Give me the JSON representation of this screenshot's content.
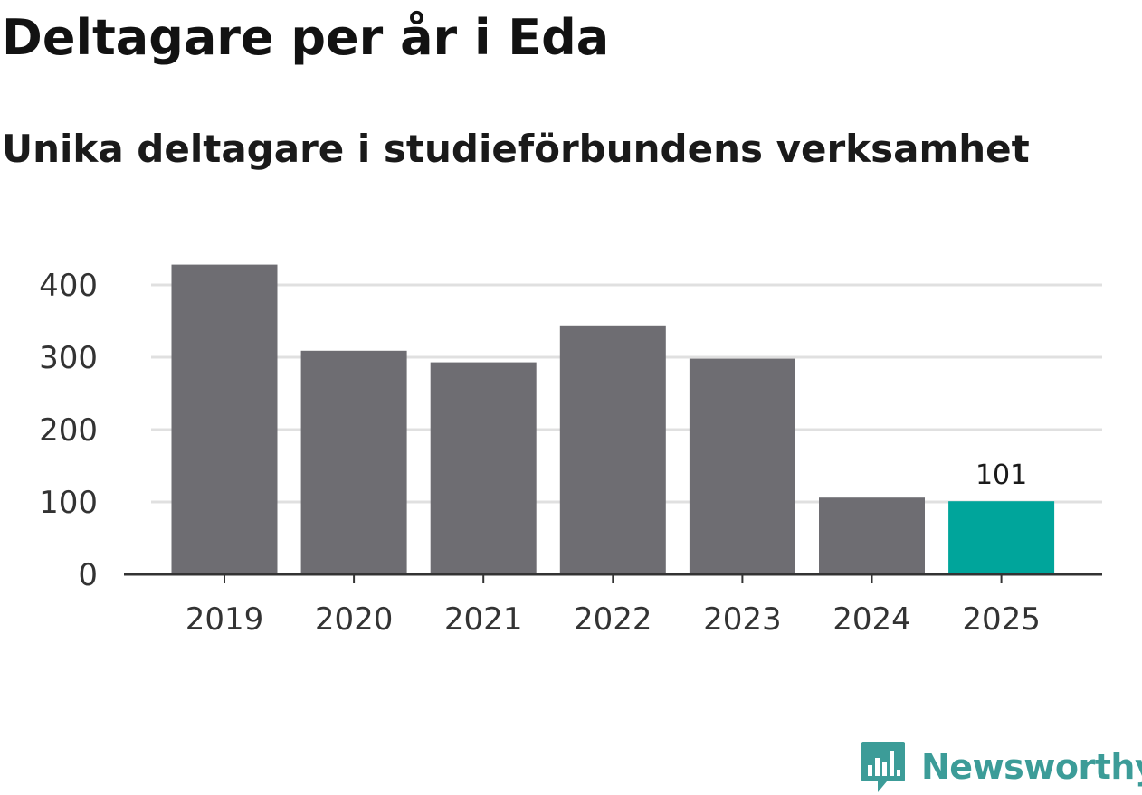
{
  "chart_data": {
    "type": "bar",
    "title": "Deltagare per år i Eda",
    "subtitle": "Unika deltagare i studieförbundens verksamhet",
    "categories": [
      "2019",
      "2020",
      "2021",
      "2022",
      "2023",
      "2024",
      "2025"
    ],
    "values": [
      428,
      309,
      293,
      344,
      298,
      106,
      101
    ],
    "highlight_index": 6,
    "value_label": "101",
    "xlabel": "",
    "ylabel": "",
    "ylim": [
      0,
      440
    ],
    "yticks": [
      0,
      100,
      200,
      300,
      400
    ],
    "grid": true,
    "colors": {
      "bar": "#6e6d72",
      "highlight": "#00a59b",
      "grid": "#e0e0e0",
      "axis": "#333333",
      "tick_text": "#333333"
    }
  },
  "branding": {
    "logo_text": "Newsworthy",
    "logo_icon": "newsworthy-chart-bubble-icon",
    "logo_color": "#3c9c98"
  }
}
